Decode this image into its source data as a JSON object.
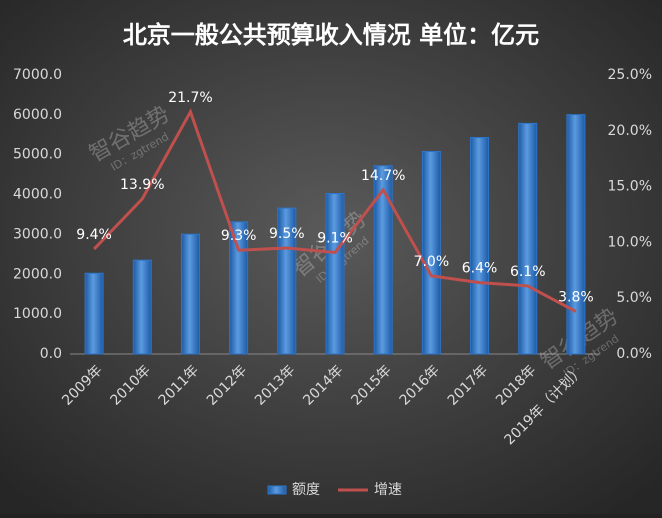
{
  "chart_data": {
    "type": "bar",
    "title": "北京一般公共预算收入情况 单位：亿元",
    "categories": [
      "2009年",
      "2010年",
      "2011年",
      "2012年",
      "2013年",
      "2014年",
      "2015年",
      "2016年",
      "2017年",
      "2018年",
      "2019年（计划）"
    ],
    "series": [
      {
        "name": "额度",
        "type": "bar",
        "color": "#2e75c9",
        "values": [
          2026,
          2354,
          3006,
          3315,
          3661,
          4027,
          4724,
          5081,
          5431,
          5786,
          6005
        ]
      },
      {
        "name": "增速",
        "type": "line",
        "axis": "y2",
        "color": "#c0504d",
        "values": [
          9.4,
          13.9,
          21.7,
          9.3,
          9.5,
          9.1,
          14.7,
          7.0,
          6.4,
          6.1,
          3.8
        ],
        "value_labels": [
          "9.4%",
          "13.9%",
          "21.7%",
          "9.3%",
          "9.5%",
          "9.1%",
          "14.7%",
          "7.0%",
          "6.4%",
          "6.1%",
          "3.8%"
        ]
      }
    ],
    "ylim": [
      0,
      7000
    ],
    "yticks": [
      {
        "value": 0,
        "label": "0.0"
      },
      {
        "value": 1000,
        "label": "1000.0"
      },
      {
        "value": 2000,
        "label": "2000.0"
      },
      {
        "value": 3000,
        "label": "3000.0"
      },
      {
        "value": 4000,
        "label": "4000.0"
      },
      {
        "value": 5000,
        "label": "5000.0"
      },
      {
        "value": 6000,
        "label": "6000.0"
      },
      {
        "value": 7000,
        "label": "7000.0"
      }
    ],
    "y2lim": [
      0,
      25
    ],
    "y2ticks": [
      {
        "value": 0,
        "label": "0.0%"
      },
      {
        "value": 5,
        "label": "5.0%"
      },
      {
        "value": 10,
        "label": "10.0%"
      },
      {
        "value": 15,
        "label": "15.0%"
      },
      {
        "value": 20,
        "label": "20.0%"
      },
      {
        "value": 25,
        "label": "25.0%"
      }
    ],
    "grid": false,
    "legend": "bottom",
    "annotations": [
      "智谷趋势",
      "ID：zgtrend"
    ]
  }
}
